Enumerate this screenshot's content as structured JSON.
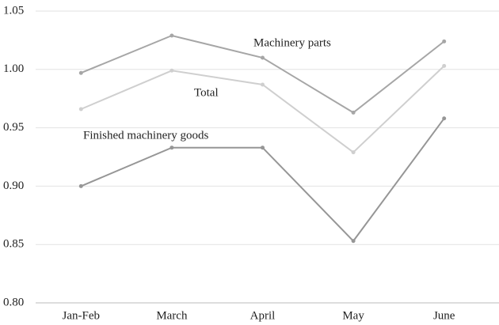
{
  "chart_data": {
    "type": "line",
    "categories": [
      "Jan-Feb",
      "March",
      "April",
      "May",
      "June"
    ],
    "series": [
      {
        "name": "Machinery parts",
        "color": "#a6a6a6",
        "values": [
          0.997,
          1.029,
          1.01,
          0.963,
          1.024
        ]
      },
      {
        "name": "Total",
        "color": "#cfcfcf",
        "values": [
          0.966,
          0.999,
          0.987,
          0.929,
          1.003
        ]
      },
      {
        "name": "Finished machinery goods",
        "color": "#969696",
        "values": [
          0.9,
          0.933,
          0.933,
          0.853,
          0.958
        ]
      }
    ],
    "ylim": [
      0.8,
      1.05
    ],
    "yticks": [
      {
        "value": 0.8,
        "label": "0.80"
      },
      0.85,
      {
        "value": 0.9,
        "label": "0.90"
      },
      0.95,
      {
        "value": 1.0,
        "label": "1.00"
      },
      1.05
    ],
    "grid": true
  }
}
